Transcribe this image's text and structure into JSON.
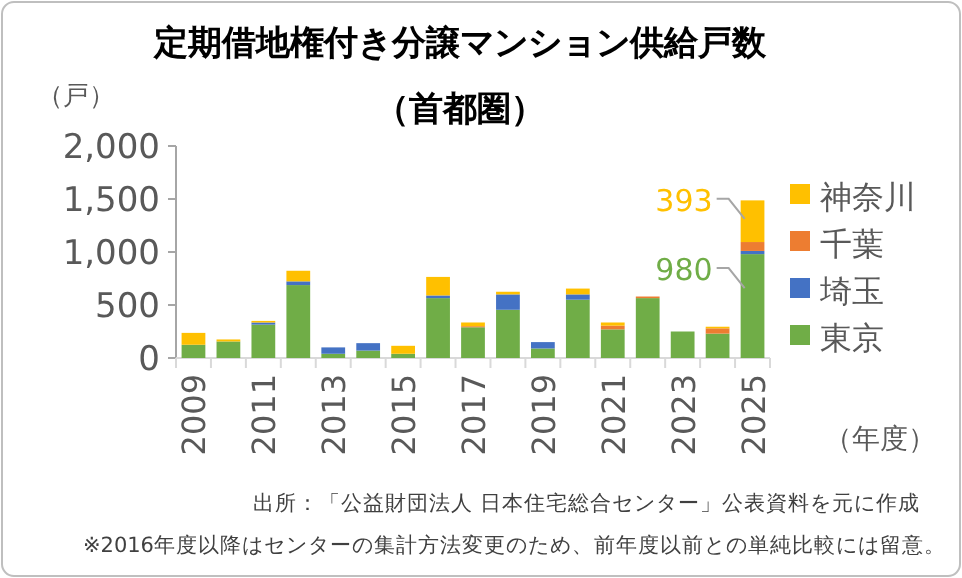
{
  "chart_data": {
    "type": "bar",
    "stacked": true,
    "title": "定期借地権付き分譲マンション供給戸数",
    "subtitle": "（首都圏）",
    "ylabel": "（戸）",
    "xlabel": "（年度）",
    "categories": [
      "2009",
      null,
      "2011",
      null,
      "2013",
      null,
      "2015",
      null,
      "2017",
      null,
      "2019",
      null,
      "2021",
      null,
      "2023",
      null,
      "2025"
    ],
    "series": [
      {
        "name": "東京",
        "color": "#70ad47",
        "values": [
          125,
          156,
          315,
          688,
          40,
          70,
          40,
          565,
          290,
          455,
          90,
          550,
          270,
          565,
          250,
          230,
          980
        ],
        "value_labels": [
          null,
          null,
          null,
          null,
          null,
          null,
          null,
          null,
          null,
          null,
          null,
          null,
          null,
          null,
          null,
          null,
          "980"
        ]
      },
      {
        "name": "埼玉",
        "color": "#4472c4",
        "values": [
          0,
          0,
          20,
          35,
          60,
          70,
          0,
          25,
          0,
          145,
          60,
          50,
          0,
          0,
          0,
          0,
          30
        ]
      },
      {
        "name": "千葉",
        "color": "#ed7d31",
        "values": [
          0,
          0,
          0,
          0,
          0,
          0,
          0,
          0,
          10,
          0,
          0,
          0,
          35,
          15,
          0,
          50,
          84
        ]
      },
      {
        "name": "神奈川",
        "color": "#ffc000",
        "values": [
          112,
          19,
          15,
          100,
          0,
          0,
          75,
          175,
          35,
          25,
          0,
          55,
          30,
          0,
          0,
          15,
          393
        ],
        "value_labels": [
          null,
          null,
          null,
          null,
          null,
          null,
          null,
          null,
          null,
          null,
          null,
          null,
          null,
          null,
          null,
          null,
          "393"
        ]
      }
    ],
    "ylim": [
      0,
      2000
    ],
    "yticks": [
      0,
      {
        "value": 500,
        "label": "500"
      },
      {
        "value": 1000,
        "label": "1,000"
      },
      {
        "value": 1500,
        "label": "1,500"
      },
      {
        "value": 2000,
        "label": "2,000"
      }
    ],
    "grid": false,
    "legend": "right",
    "annotations": [
      "出所：「公益財団法人 日本住宅総合センター」公表資料を元に作成",
      "※2016年度以降はセンターの集計方法変更のため、前年度以前との単純比較には留意。"
    ]
  }
}
